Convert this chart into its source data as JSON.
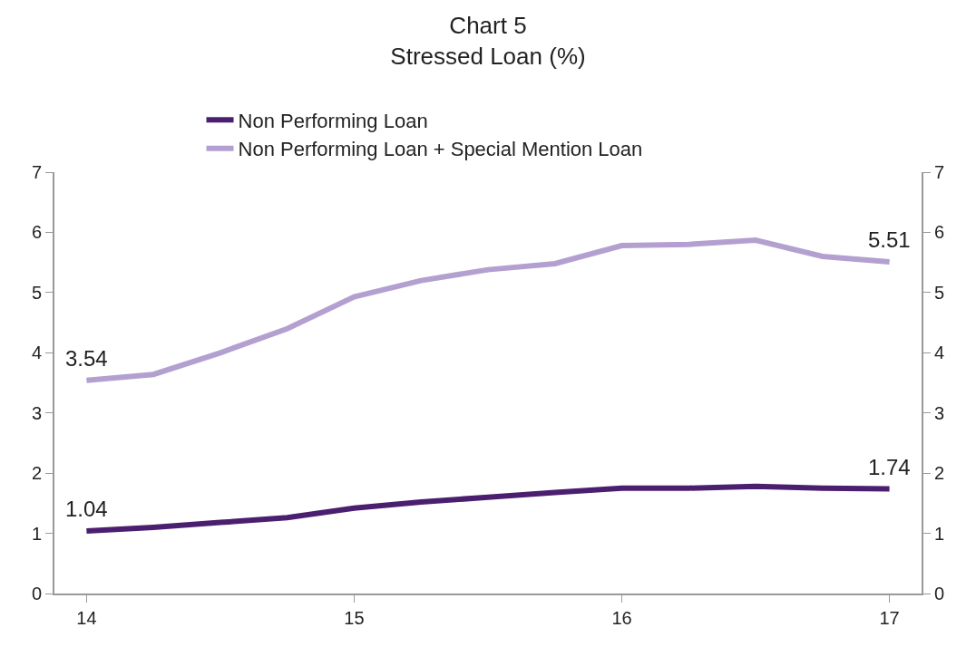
{
  "chart_data": {
    "type": "line",
    "title": "Chart 5",
    "subtitle": "Stressed Loan (%)",
    "x": [
      14,
      14.25,
      14.5,
      14.75,
      15,
      15.25,
      15.5,
      15.75,
      16,
      16.25,
      16.5,
      16.75,
      17
    ],
    "series": [
      {
        "name": "Non Performing Loan",
        "color": "#4b1f6f",
        "values": [
          1.04,
          1.1,
          1.18,
          1.26,
          1.42,
          1.52,
          1.6,
          1.68,
          1.75,
          1.75,
          1.78,
          1.75,
          1.74
        ],
        "value_labels": [
          "1.04",
          null,
          null,
          null,
          null,
          null,
          null,
          null,
          null,
          null,
          null,
          null,
          "1.74"
        ]
      },
      {
        "name": "Non Performing Loan + Special Mention Loan",
        "color": "#b4a0d0",
        "values": [
          3.54,
          3.64,
          4.0,
          4.4,
          4.93,
          5.2,
          5.38,
          5.48,
          5.78,
          5.8,
          5.87,
          5.6,
          5.51
        ],
        "value_labels": [
          "3.54",
          null,
          null,
          null,
          null,
          null,
          null,
          null,
          null,
          null,
          null,
          null,
          "5.51"
        ]
      }
    ],
    "xlim": [
      13.88,
      17.12
    ],
    "xticks": [
      14,
      15,
      16,
      17
    ],
    "ylim": [
      0,
      7
    ],
    "yticks": [
      0,
      1,
      2,
      3,
      4,
      5,
      6,
      7
    ],
    "y2lim": [
      0,
      7
    ],
    "y2ticks": [
      0,
      1,
      2,
      3,
      4,
      5,
      6,
      7
    ],
    "legend": "top",
    "marker": "none",
    "line_style": "solid"
  }
}
